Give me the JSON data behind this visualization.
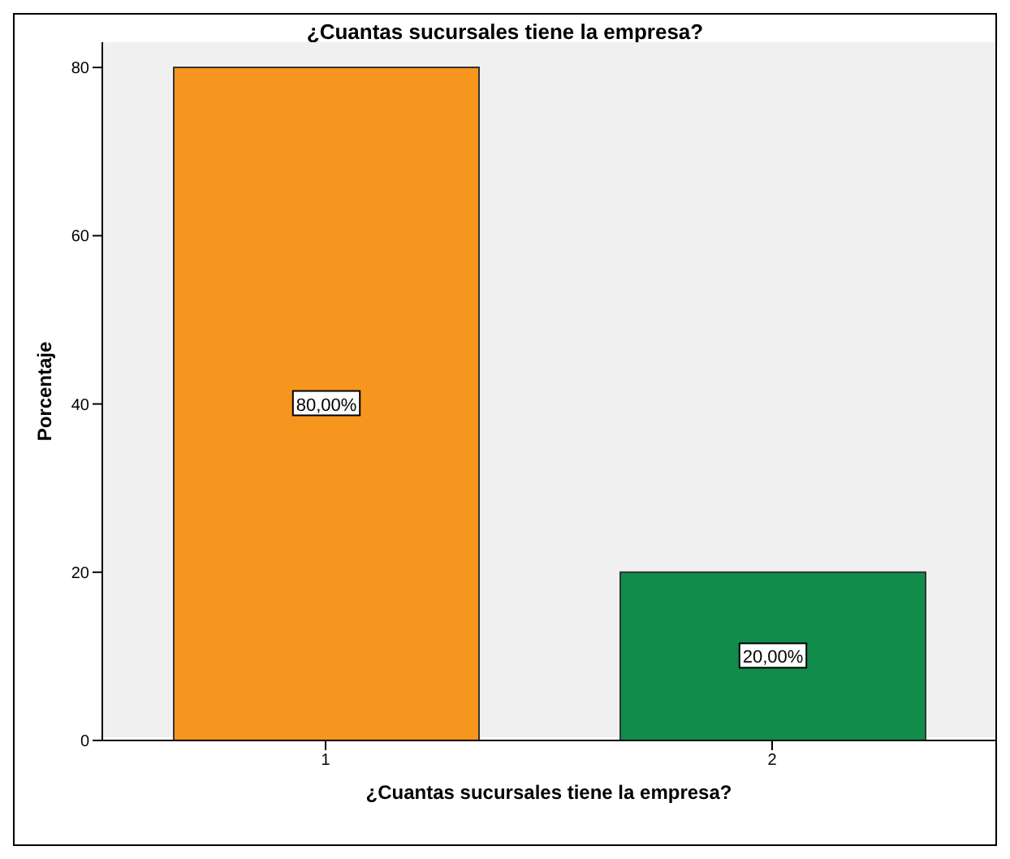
{
  "chart_data": {
    "type": "bar",
    "title": "¿Cuantas sucursales tiene la empresa?",
    "xlabel": "¿Cuantas sucursales tiene la empresa?",
    "ylabel": "Porcentaje",
    "categories": [
      "1",
      "2"
    ],
    "values": [
      80,
      20
    ],
    "colors": [
      "#f7961e",
      "#128c4a"
    ],
    "value_labels": [
      "80,00%",
      "20,00%"
    ],
    "ylim": [
      0,
      83
    ],
    "yticks": [
      0,
      20,
      40,
      60,
      80
    ],
    "grid": false
  }
}
